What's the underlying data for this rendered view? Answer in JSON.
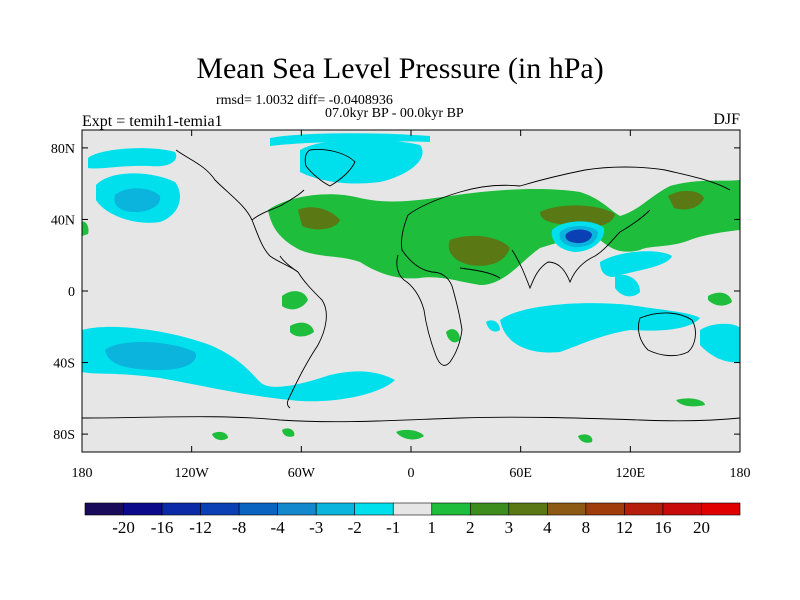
{
  "figure": {
    "title": "Mean Sea Level Pressure (in hPa)",
    "stats": "rmsd= 1.0032 diff= -0.0408936",
    "period": "07.0kyr BP - 00.0kyr BP",
    "experiment": "Expt = temih1-temia1",
    "season": "DJF"
  },
  "axes": {
    "lon_ticks": [
      "180",
      "120W",
      "60W",
      "0",
      "60E",
      "120E",
      "180"
    ],
    "lon_values": [
      -180,
      -120,
      -60,
      0,
      60,
      120,
      180
    ],
    "lat_ticks": [
      "80N",
      "40N",
      "0",
      "40S",
      "80S"
    ],
    "lat_values": [
      80,
      40,
      0,
      -40,
      -80
    ],
    "lon_range": [
      -180,
      180
    ],
    "lat_range": [
      -90,
      90
    ]
  },
  "colorbar": {
    "labels": [
      "-20",
      "-16",
      "-12",
      "-8",
      "-4",
      "-3",
      "-2",
      "-1",
      "1",
      "2",
      "3",
      "4",
      "8",
      "12",
      "16",
      "20"
    ],
    "colors": [
      "#1a0a5a",
      "#0a0a8a",
      "#0a2aa8",
      "#0a40b4",
      "#0a64c0",
      "#1488cc",
      "#0ab4dc",
      "#00e0ec",
      "#e6e6e6",
      "#1ebe3c",
      "#3c8c1e",
      "#5a7814",
      "#8c5a14",
      "#a03c0a",
      "#b41e0a",
      "#c80a0a",
      "#e00000"
    ]
  },
  "chart_data": {
    "type": "heatmap",
    "title": "Mean Sea Level Pressure (in hPa)",
    "units": "hPa",
    "projection": "cylindrical equidistant",
    "regions": [
      {
        "name": "north-pacific-low",
        "lon": [
          -175,
          -140
        ],
        "lat": [
          30,
          50
        ],
        "level": "-2 to -4"
      },
      {
        "name": "arctic-greenland",
        "lon": [
          -65,
          -15
        ],
        "lat": [
          60,
          80
        ],
        "level": "-1 to -2"
      },
      {
        "name": "north-atlantic-eurasia-high",
        "lon": [
          -80,
          140
        ],
        "lat": [
          15,
          55
        ],
        "level": "1 to 3"
      },
      {
        "name": "tibetan-low",
        "lon": [
          85,
          105
        ],
        "lat": [
          28,
          40
        ],
        "level": "-2 to -8"
      },
      {
        "name": "south-pacific-low",
        "lon": [
          -180,
          -60
        ],
        "lat": [
          -60,
          -20
        ],
        "level": "-1 to -4"
      },
      {
        "name": "indian-ocean-low",
        "lon": [
          45,
          115
        ],
        "lat": [
          -40,
          -15
        ],
        "level": "-1 to -2"
      },
      {
        "name": "western-pacific-low",
        "lon": [
          120,
          160
        ],
        "lat": [
          10,
          30
        ],
        "level": "-1 to -2"
      }
    ]
  }
}
